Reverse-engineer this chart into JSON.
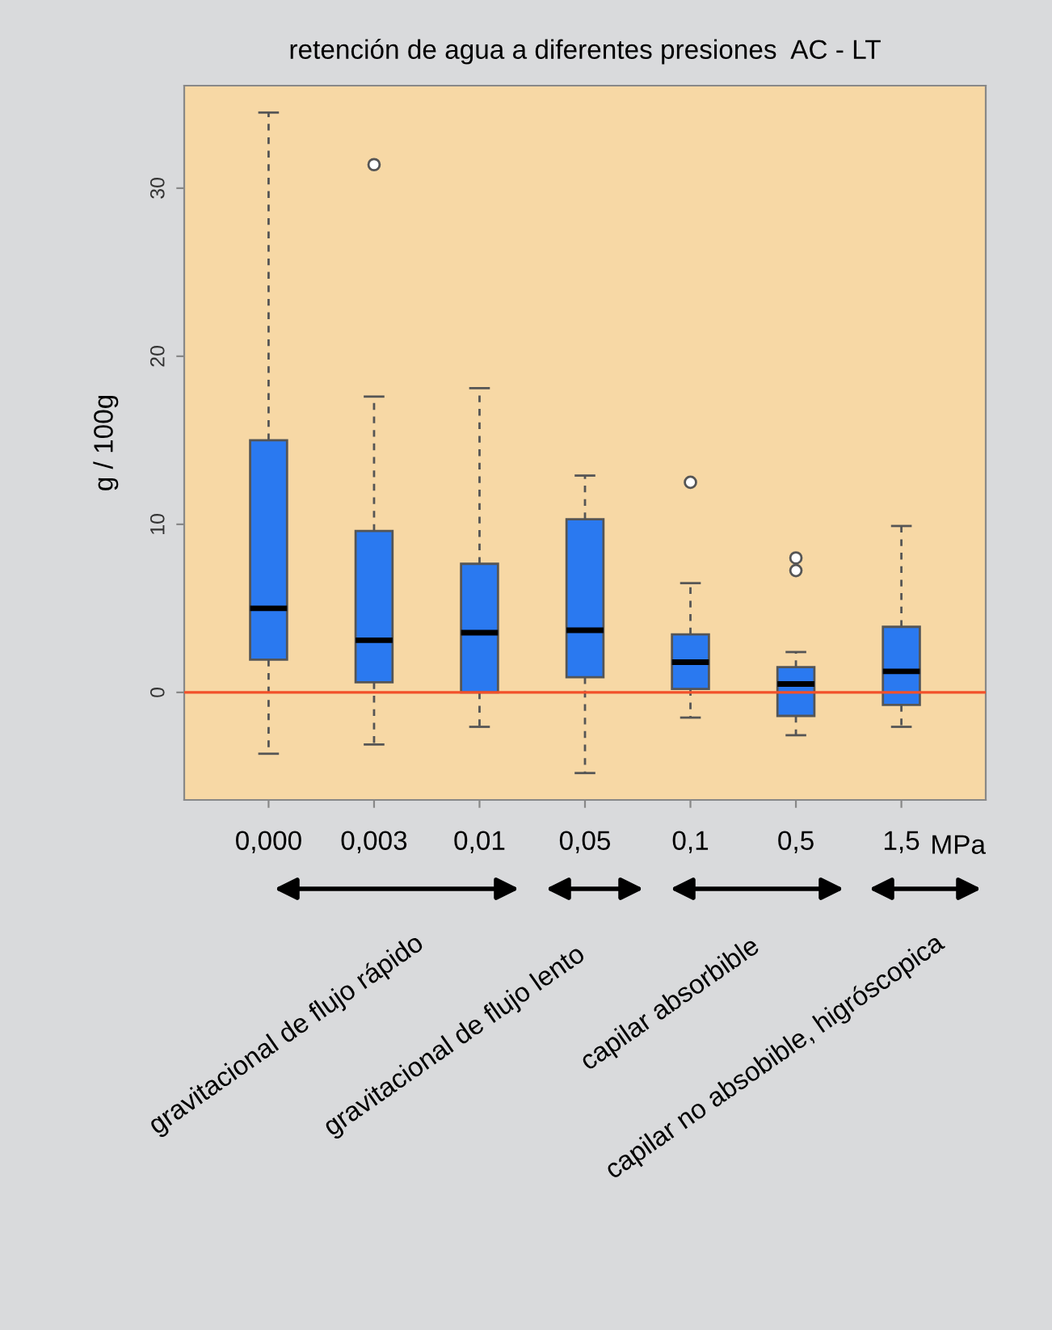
{
  "chart_data": {
    "type": "box",
    "title": "retención de agua a diferentes presiones  AC - LT",
    "ylabel": "g / 100g",
    "categories": [
      "0,000",
      "0,003",
      "0,01",
      "0,05",
      "0,1",
      "0,5",
      "1,5"
    ],
    "color": "#2a79f0",
    "boxes": [
      {
        "low": -3.65,
        "q1": 1.95,
        "median": 5.0,
        "q3": 15.0,
        "high": 34.5
      },
      {
        "low": -3.1,
        "q1": 0.6,
        "median": 3.1,
        "q3": 9.6,
        "high": 17.6,
        "outliers": [
          31.4
        ]
      },
      {
        "low": -2.05,
        "q1": 0.0,
        "median": 3.55,
        "q3": 7.65,
        "high": 18.1
      },
      {
        "low": -4.8,
        "q1": 0.9,
        "median": 3.7,
        "q3": 10.3,
        "high": 12.9
      },
      {
        "low": -1.5,
        "q1": 0.2,
        "median": 1.8,
        "q3": 3.45,
        "high": 6.5,
        "outliers": [
          12.5
        ]
      },
      {
        "low": -2.55,
        "q1": -1.4,
        "median": 0.5,
        "q3": 1.5,
        "high": 2.4,
        "outliers": [
          8.0,
          7.25
        ]
      },
      {
        "low": -2.05,
        "q1": -0.75,
        "median": 1.25,
        "q3": 3.9,
        "high": 9.9
      }
    ],
    "ylim": [
      -6.4,
      36.1
    ],
    "yticks": [
      0,
      10,
      20,
      30
    ],
    "ref_lines": [
      {
        "axis": "y",
        "value": 0,
        "color": "#f2502a"
      }
    ],
    "annotations": [
      "MPa",
      "gravitacional de flujo rápido",
      "gravitacional de flujo lento",
      "capilar absorbible",
      "capilar no absobible, higróscopica"
    ],
    "grid": false
  }
}
